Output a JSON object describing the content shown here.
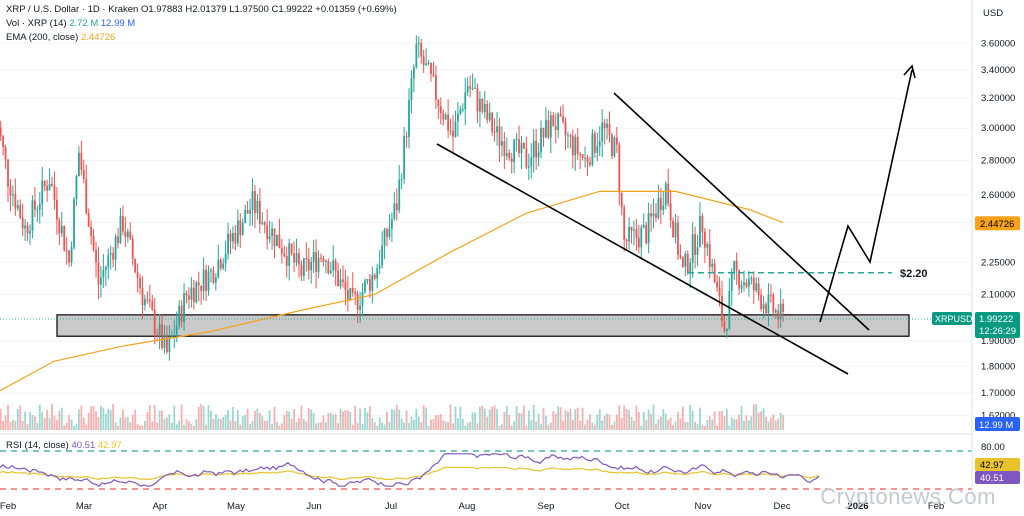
{
  "legend": {
    "main_label": "XRP / U.S. Dollar · 1D · Kraken",
    "ohlc": "O1.97883 H2.01379 L1.97500 C1.99222 +0.01359 (+0.69%)",
    "vol_label": "Vol · XRP (14)",
    "vol_value1": "2.72 M",
    "vol_value2": "12.99 M",
    "ema_label": "EMA (200, close)",
    "ema_value": "2.44726",
    "rsi_label": "RSI (14, close)",
    "rsi_value1": "40.51",
    "rsi_value2": "42.97"
  },
  "currency": "USD",
  "watermark": "Cryptonews.Com",
  "colors": {
    "up": "#26a69a",
    "down": "#ef5350",
    "ema": "#f7a21b",
    "rsi": "#7e57c2",
    "rsi_ma": "#e8c32b",
    "accent_green": "#089981",
    "dashed_green": "#26a69a",
    "dashed_red": "#ef5350",
    "axis_text": "#131722"
  },
  "chart_data": {
    "type": "line",
    "title": "XRP / U.S. Dollar · 1D · Kraken",
    "scale": "log",
    "y_ticks": [
      "3.60000",
      "3.40000",
      "3.20000",
      "3.00000",
      "2.80000",
      "2.60000",
      "2.45000",
      "2.25000",
      "2.10000",
      "2.00000",
      "1.90000",
      "1.80000",
      "1.70000",
      "1.62000"
    ],
    "x_ticks": [
      "Feb",
      "Mar",
      "Apr",
      "May",
      "Jun",
      "Jul",
      "Aug",
      "Sep",
      "Oct",
      "Nov",
      "Dec",
      "2026",
      "Feb"
    ],
    "price_path": [
      {
        "x": "2025-01-27",
        "y": 3.1
      },
      {
        "x": "2025-02-01",
        "y": 2.7
      },
      {
        "x": "2025-02-08",
        "y": 2.42
      },
      {
        "x": "2025-02-18",
        "y": 2.7
      },
      {
        "x": "2025-02-26",
        "y": 2.25
      },
      {
        "x": "2025-03-02",
        "y": 2.85
      },
      {
        "x": "2025-03-10",
        "y": 2.15
      },
      {
        "x": "2025-03-20",
        "y": 2.45
      },
      {
        "x": "2025-03-28",
        "y": 2.1
      },
      {
        "x": "2025-04-07",
        "y": 1.85
      },
      {
        "x": "2025-04-15",
        "y": 2.1
      },
      {
        "x": "2025-04-25",
        "y": 2.2
      },
      {
        "x": "2025-05-12",
        "y": 2.55
      },
      {
        "x": "2025-05-20",
        "y": 2.4
      },
      {
        "x": "2025-06-01",
        "y": 2.2
      },
      {
        "x": "2025-06-10",
        "y": 2.3
      },
      {
        "x": "2025-06-22",
        "y": 2.05
      },
      {
        "x": "2025-07-01",
        "y": 2.2
      },
      {
        "x": "2025-07-10",
        "y": 2.55
      },
      {
        "x": "2025-07-18",
        "y": 3.55
      },
      {
        "x": "2025-07-22",
        "y": 3.4
      },
      {
        "x": "2025-08-02",
        "y": 2.95
      },
      {
        "x": "2025-08-08",
        "y": 3.3
      },
      {
        "x": "2025-08-20",
        "y": 2.95
      },
      {
        "x": "2025-09-01",
        "y": 2.8
      },
      {
        "x": "2025-09-12",
        "y": 3.05
      },
      {
        "x": "2025-09-25",
        "y": 2.8
      },
      {
        "x": "2025-10-02",
        "y": 3.0
      },
      {
        "x": "2025-10-08",
        "y": 2.85
      },
      {
        "x": "2025-10-11",
        "y": 2.35
      },
      {
        "x": "2025-10-20",
        "y": 2.4
      },
      {
        "x": "2025-10-28",
        "y": 2.65
      },
      {
        "x": "2025-11-04",
        "y": 2.2
      },
      {
        "x": "2025-11-12",
        "y": 2.45
      },
      {
        "x": "2025-11-21",
        "y": 1.95
      },
      {
        "x": "2025-11-25",
        "y": 2.2
      },
      {
        "x": "2025-12-01",
        "y": 2.15
      },
      {
        "x": "2025-12-09",
        "y": 2.05
      },
      {
        "x": "2025-12-15",
        "y": 1.99
      }
    ],
    "ema_200": [
      {
        "x": "2025-01-27",
        "y": 1.7
      },
      {
        "x": "2025-02-20",
        "y": 1.82
      },
      {
        "x": "2025-03-20",
        "y": 1.88
      },
      {
        "x": "2025-04-25",
        "y": 1.94
      },
      {
        "x": "2025-06-01",
        "y": 2.03
      },
      {
        "x": "2025-07-01",
        "y": 2.1
      },
      {
        "x": "2025-08-01",
        "y": 2.3
      },
      {
        "x": "2025-09-01",
        "y": 2.5
      },
      {
        "x": "2025-10-01",
        "y": 2.62
      },
      {
        "x": "2025-11-01",
        "y": 2.62
      },
      {
        "x": "2025-12-01",
        "y": 2.52
      },
      {
        "x": "2025-12-15",
        "y": 2.45
      }
    ],
    "support_zone": {
      "low": 1.92,
      "high": 2.01,
      "label": ""
    },
    "target_level": {
      "value": 2.2,
      "label": "$2.20"
    },
    "last_price": {
      "label": "XRPUSD",
      "value": "1.99222",
      "countdown": "12:26:29"
    },
    "ema_label_value": "2.44726",
    "volume_label_value": "12.99 M",
    "rsi_levels": {
      "upper": "80.00",
      "lower": "",
      "value": "40.51",
      "ma": "42.97"
    }
  }
}
